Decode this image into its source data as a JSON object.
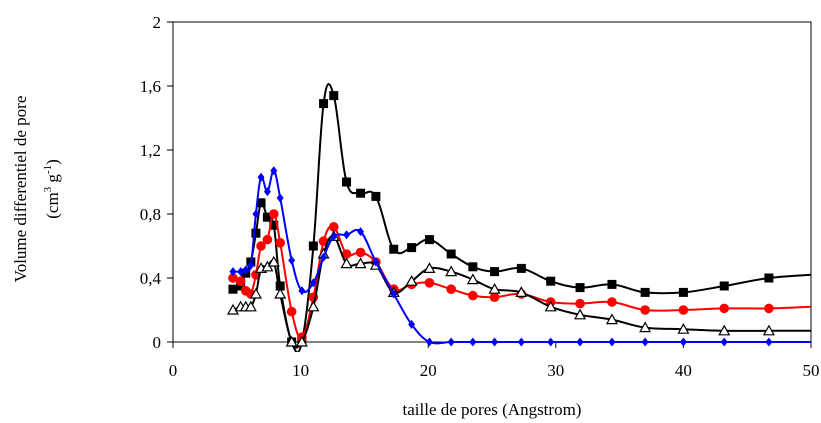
{
  "chart_data": {
    "type": "line",
    "title": "",
    "xlabel": "taille de pores (Angstrom)",
    "ylabel_line1": "Volume differentiel de pore",
    "ylabel_unit_open": "(cm",
    "ylabel_unit_sup1": "3",
    "ylabel_unit_mid": " g",
    "ylabel_unit_sup2": "-1",
    "ylabel_unit_close": ")",
    "xlim": [
      0,
      50
    ],
    "ylim": [
      0,
      2
    ],
    "xticks": [
      0,
      10,
      20,
      30,
      40,
      50
    ],
    "xtick_labels": [
      "0",
      "10",
      "20",
      "30",
      "40",
      "50"
    ],
    "yticks": [
      0,
      0.4,
      0.8,
      1.2,
      1.6,
      2
    ],
    "ytick_labels": [
      "0",
      "0,4",
      "0,8",
      "1,2",
      "1,6",
      "2"
    ],
    "grid": false,
    "legend": "none",
    "series": [
      {
        "color": "#000000",
        "marker": "square",
        "x": [
          4.7,
          5.3,
          5.7,
          6.1,
          6.5,
          6.9,
          7.4,
          7.9,
          8.4,
          9.3,
          10.1,
          11.0,
          11.8,
          12.6,
          13.6,
          14.7,
          15.9,
          17.3,
          18.7,
          20.1,
          21.8,
          23.5,
          25.2,
          27.3,
          29.6,
          31.9,
          34.4,
          37.0,
          40.0,
          43.2,
          46.7,
          50.0
        ],
        "y": [
          0.33,
          0.35,
          0.43,
          0.5,
          0.68,
          0.87,
          0.78,
          0.73,
          0.35,
          0.0,
          0.0,
          0.6,
          1.49,
          1.54,
          1.0,
          0.93,
          0.91,
          0.58,
          0.59,
          0.64,
          0.55,
          0.47,
          0.44,
          0.46,
          0.38,
          0.34,
          0.36,
          0.31,
          0.31,
          0.35,
          0.4,
          0.42
        ],
        "markers": [
          true,
          true,
          true,
          true,
          true,
          true,
          true,
          true,
          true,
          true,
          true,
          true,
          true,
          true,
          true,
          true,
          true,
          true,
          true,
          true,
          true,
          true,
          true,
          true,
          true,
          true,
          true,
          true,
          true,
          true,
          true,
          false
        ]
      },
      {
        "color": "#ff0000",
        "marker": "circle",
        "x": [
          4.7,
          5.3,
          5.7,
          6.1,
          6.5,
          6.9,
          7.4,
          7.9,
          8.4,
          9.3,
          10.1,
          11.0,
          11.8,
          12.6,
          13.6,
          14.7,
          15.9,
          17.3,
          18.7,
          20.1,
          21.8,
          23.5,
          25.2,
          27.3,
          29.6,
          31.9,
          34.4,
          37.0,
          40.0,
          43.2,
          46.7,
          50.0
        ],
        "y": [
          0.4,
          0.38,
          0.32,
          0.3,
          0.42,
          0.6,
          0.64,
          0.8,
          0.62,
          0.19,
          0.03,
          0.28,
          0.63,
          0.72,
          0.55,
          0.56,
          0.5,
          0.33,
          0.36,
          0.37,
          0.33,
          0.29,
          0.28,
          0.3,
          0.25,
          0.24,
          0.25,
          0.2,
          0.2,
          0.21,
          0.21,
          0.22
        ],
        "markers": [
          true,
          true,
          true,
          true,
          true,
          true,
          true,
          true,
          true,
          true,
          true,
          true,
          true,
          true,
          true,
          true,
          true,
          true,
          true,
          true,
          true,
          true,
          true,
          true,
          true,
          true,
          true,
          true,
          true,
          true,
          true,
          false
        ]
      },
      {
        "color": "#000000",
        "marker": "triangle-open",
        "x": [
          4.7,
          5.3,
          5.7,
          6.1,
          6.5,
          6.9,
          7.4,
          7.9,
          8.4,
          9.3,
          10.1,
          11.0,
          11.8,
          12.6,
          13.6,
          14.7,
          15.9,
          17.3,
          18.7,
          20.1,
          21.8,
          23.5,
          25.2,
          27.3,
          29.6,
          31.9,
          34.4,
          37.0,
          40.0,
          43.2,
          46.7,
          50.0
        ],
        "y": [
          0.2,
          0.22,
          0.22,
          0.22,
          0.3,
          0.46,
          0.47,
          0.5,
          0.3,
          0.0,
          0.0,
          0.22,
          0.55,
          0.66,
          0.49,
          0.49,
          0.48,
          0.31,
          0.38,
          0.46,
          0.44,
          0.39,
          0.33,
          0.31,
          0.22,
          0.17,
          0.14,
          0.09,
          0.08,
          0.07,
          0.07,
          0.07
        ],
        "markers": [
          true,
          true,
          true,
          true,
          true,
          true,
          true,
          true,
          true,
          true,
          true,
          true,
          true,
          true,
          true,
          true,
          true,
          true,
          true,
          true,
          true,
          true,
          true,
          true,
          true,
          true,
          true,
          true,
          true,
          true,
          true,
          false
        ]
      },
      {
        "color": "#0000ff",
        "marker": "diamond",
        "x": [
          4.7,
          5.3,
          5.7,
          6.1,
          6.5,
          6.9,
          7.4,
          7.9,
          8.4,
          9.3,
          10.1,
          11.0,
          11.8,
          12.6,
          13.6,
          14.7,
          15.9,
          17.3,
          18.7,
          20.1,
          21.8,
          23.5,
          25.2,
          27.3,
          29.6,
          31.9,
          34.4,
          37.0,
          40.0,
          43.2,
          46.7,
          50.0
        ],
        "y": [
          0.44,
          0.44,
          0.45,
          0.48,
          0.8,
          1.03,
          0.94,
          1.07,
          0.9,
          0.51,
          0.32,
          0.37,
          0.53,
          0.66,
          0.67,
          0.69,
          0.5,
          0.3,
          0.11,
          0.0,
          0.0,
          0.0,
          0.0,
          0.0,
          0.0,
          0.0,
          0.0,
          0.0,
          0.0,
          0.0,
          0.0,
          0.0
        ],
        "markers": [
          true,
          true,
          true,
          true,
          true,
          true,
          true,
          true,
          true,
          true,
          true,
          true,
          true,
          true,
          true,
          true,
          true,
          true,
          true,
          true,
          true,
          true,
          true,
          true,
          true,
          true,
          true,
          true,
          true,
          true,
          true,
          false
        ]
      }
    ]
  }
}
